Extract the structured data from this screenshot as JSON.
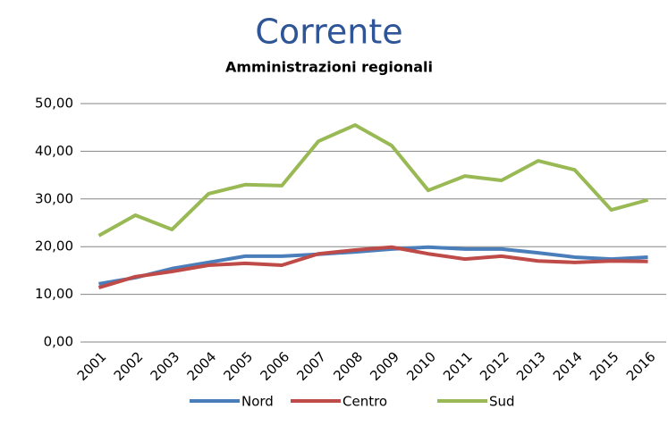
{
  "chart_data": {
    "type": "line",
    "title": "Corrente",
    "subtitle": "Amministrazioni regionali",
    "categories": [
      "2001",
      "2002",
      "2003",
      "2004",
      "2005",
      "2006",
      "2007",
      "2008",
      "2009",
      "2010",
      "2011",
      "2012",
      "2013",
      "2014",
      "2015",
      "2016"
    ],
    "series": [
      {
        "name": "Nord",
        "color": "#4a7ebb",
        "values": [
          12.2,
          13.5,
          15.4,
          16.7,
          18.0,
          18.0,
          18.4,
          18.9,
          19.5,
          19.9,
          19.5,
          19.5,
          18.7,
          17.8,
          17.4,
          17.8
        ]
      },
      {
        "name": "Centro",
        "color": "#be4b48",
        "values": [
          11.4,
          13.7,
          14.8,
          16.1,
          16.5,
          16.1,
          18.5,
          19.3,
          19.9,
          18.5,
          17.4,
          18.0,
          17.0,
          16.7,
          17.0,
          16.9
        ]
      },
      {
        "name": "Sud",
        "color": "#98b954",
        "values": [
          22.3,
          26.6,
          23.6,
          31.1,
          33.0,
          32.8,
          42.1,
          45.5,
          41.2,
          31.8,
          34.8,
          33.9,
          38.0,
          36.1,
          27.7,
          29.8
        ]
      }
    ],
    "ylim": [
      0,
      50
    ],
    "yticks": [
      {
        "value": 0,
        "label": "0,00"
      },
      {
        "value": 10,
        "label": "10,00"
      },
      {
        "value": 20,
        "label": "20,00"
      },
      {
        "value": 30,
        "label": "30,00"
      },
      {
        "value": 40,
        "label": "40,00"
      },
      {
        "value": 50,
        "label": "50,00"
      }
    ],
    "grid": true,
    "legend": "bottom"
  }
}
